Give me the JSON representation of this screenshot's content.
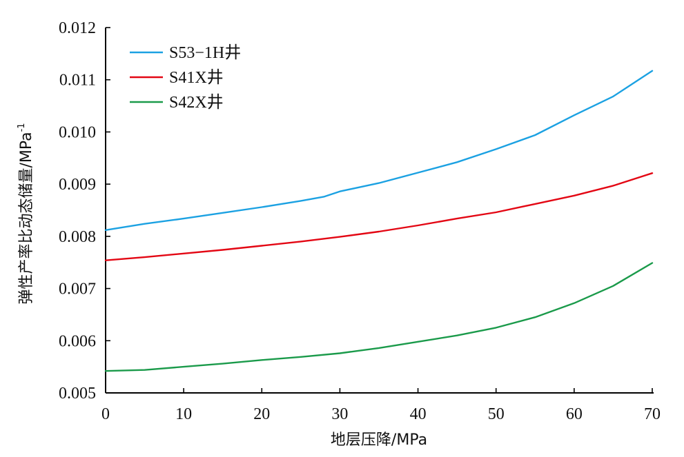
{
  "chart_data": {
    "type": "line",
    "xlabel": "地层压降/MPa",
    "ylabel": "弹性产率比动态储量/MPa",
    "ylabel_superscript": "-1",
    "xlim": [
      0,
      70
    ],
    "ylim": [
      0.005,
      0.012
    ],
    "x_ticks": [
      0,
      10,
      20,
      30,
      40,
      50,
      60,
      70
    ],
    "x_tick_labels": [
      "0",
      "10",
      "20",
      "30",
      "40",
      "50",
      "60",
      "70"
    ],
    "y_ticks": [
      0.005,
      0.006,
      0.007,
      0.008,
      0.009,
      0.01,
      0.011,
      0.012
    ],
    "y_tick_labels": [
      "0.005",
      "0.006",
      "0.007",
      "0.008",
      "0.009",
      "0.010",
      "0.011",
      "0.012"
    ],
    "grid": false,
    "legend_position": "top-left",
    "series": [
      {
        "name": "S53−1H井",
        "color": "#1ba1e2",
        "x": [
          0,
          5,
          10,
          15,
          20,
          25,
          28,
          30,
          35,
          40,
          45,
          50,
          55,
          60,
          65,
          70
        ],
        "y": [
          0.00812,
          0.00824,
          0.00834,
          0.00845,
          0.00856,
          0.00868,
          0.00876,
          0.00886,
          0.00902,
          0.00922,
          0.00942,
          0.00967,
          0.00994,
          0.01032,
          0.01068,
          0.01117
        ]
      },
      {
        "name": "S41X井",
        "color": "#e30613",
        "x": [
          0,
          5,
          10,
          15,
          20,
          25,
          30,
          35,
          40,
          45,
          50,
          55,
          60,
          65,
          70
        ],
        "y": [
          0.00754,
          0.0076,
          0.00767,
          0.00774,
          0.00782,
          0.0079,
          0.00799,
          0.00809,
          0.00821,
          0.00834,
          0.00846,
          0.00862,
          0.00878,
          0.00897,
          0.00921
        ]
      },
      {
        "name": "S42X井",
        "color": "#1a9a4a",
        "x": [
          0,
          5,
          10,
          15,
          20,
          25,
          30,
          35,
          40,
          45,
          50,
          55,
          60,
          65,
          70
        ],
        "y": [
          0.00542,
          0.00544,
          0.0055,
          0.00556,
          0.00563,
          0.00569,
          0.00576,
          0.00586,
          0.00598,
          0.0061,
          0.00625,
          0.00645,
          0.00672,
          0.00705,
          0.00749
        ]
      }
    ]
  }
}
